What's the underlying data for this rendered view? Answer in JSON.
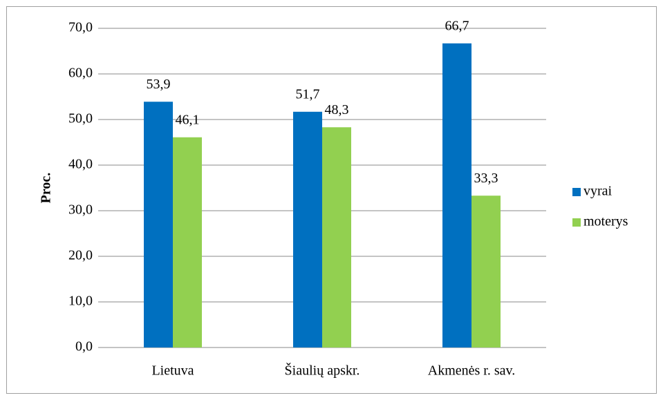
{
  "chart_data": {
    "type": "bar",
    "y_label": "Proc.",
    "categories": [
      "Lietuva",
      "Šiaulių apskr.",
      "Akmenės r. sav."
    ],
    "series": [
      {
        "name": "vyrai",
        "color": "#0070c0",
        "values": [
          53.9,
          51.7,
          66.7
        ],
        "value_labels": [
          "53,9",
          "51,7",
          "66,7"
        ]
      },
      {
        "name": "moterys",
        "color": "#92d050",
        "values": [
          46.1,
          48.3,
          33.3
        ],
        "value_labels": [
          "46,1",
          "48,3",
          "33,3"
        ]
      }
    ],
    "ylim": [
      0,
      70
    ],
    "yticks": [
      {
        "value": 0,
        "label": "0,0"
      },
      {
        "value": 10,
        "label": "10,0"
      },
      {
        "value": 20,
        "label": "20,0"
      },
      {
        "value": 30,
        "label": "30,0"
      },
      {
        "value": 40,
        "label": "40,0"
      },
      {
        "value": 50,
        "label": "50,0"
      },
      {
        "value": 60,
        "label": "60,0"
      },
      {
        "value": 70,
        "label": "70,0"
      }
    ],
    "grid": true,
    "legend": "right"
  }
}
